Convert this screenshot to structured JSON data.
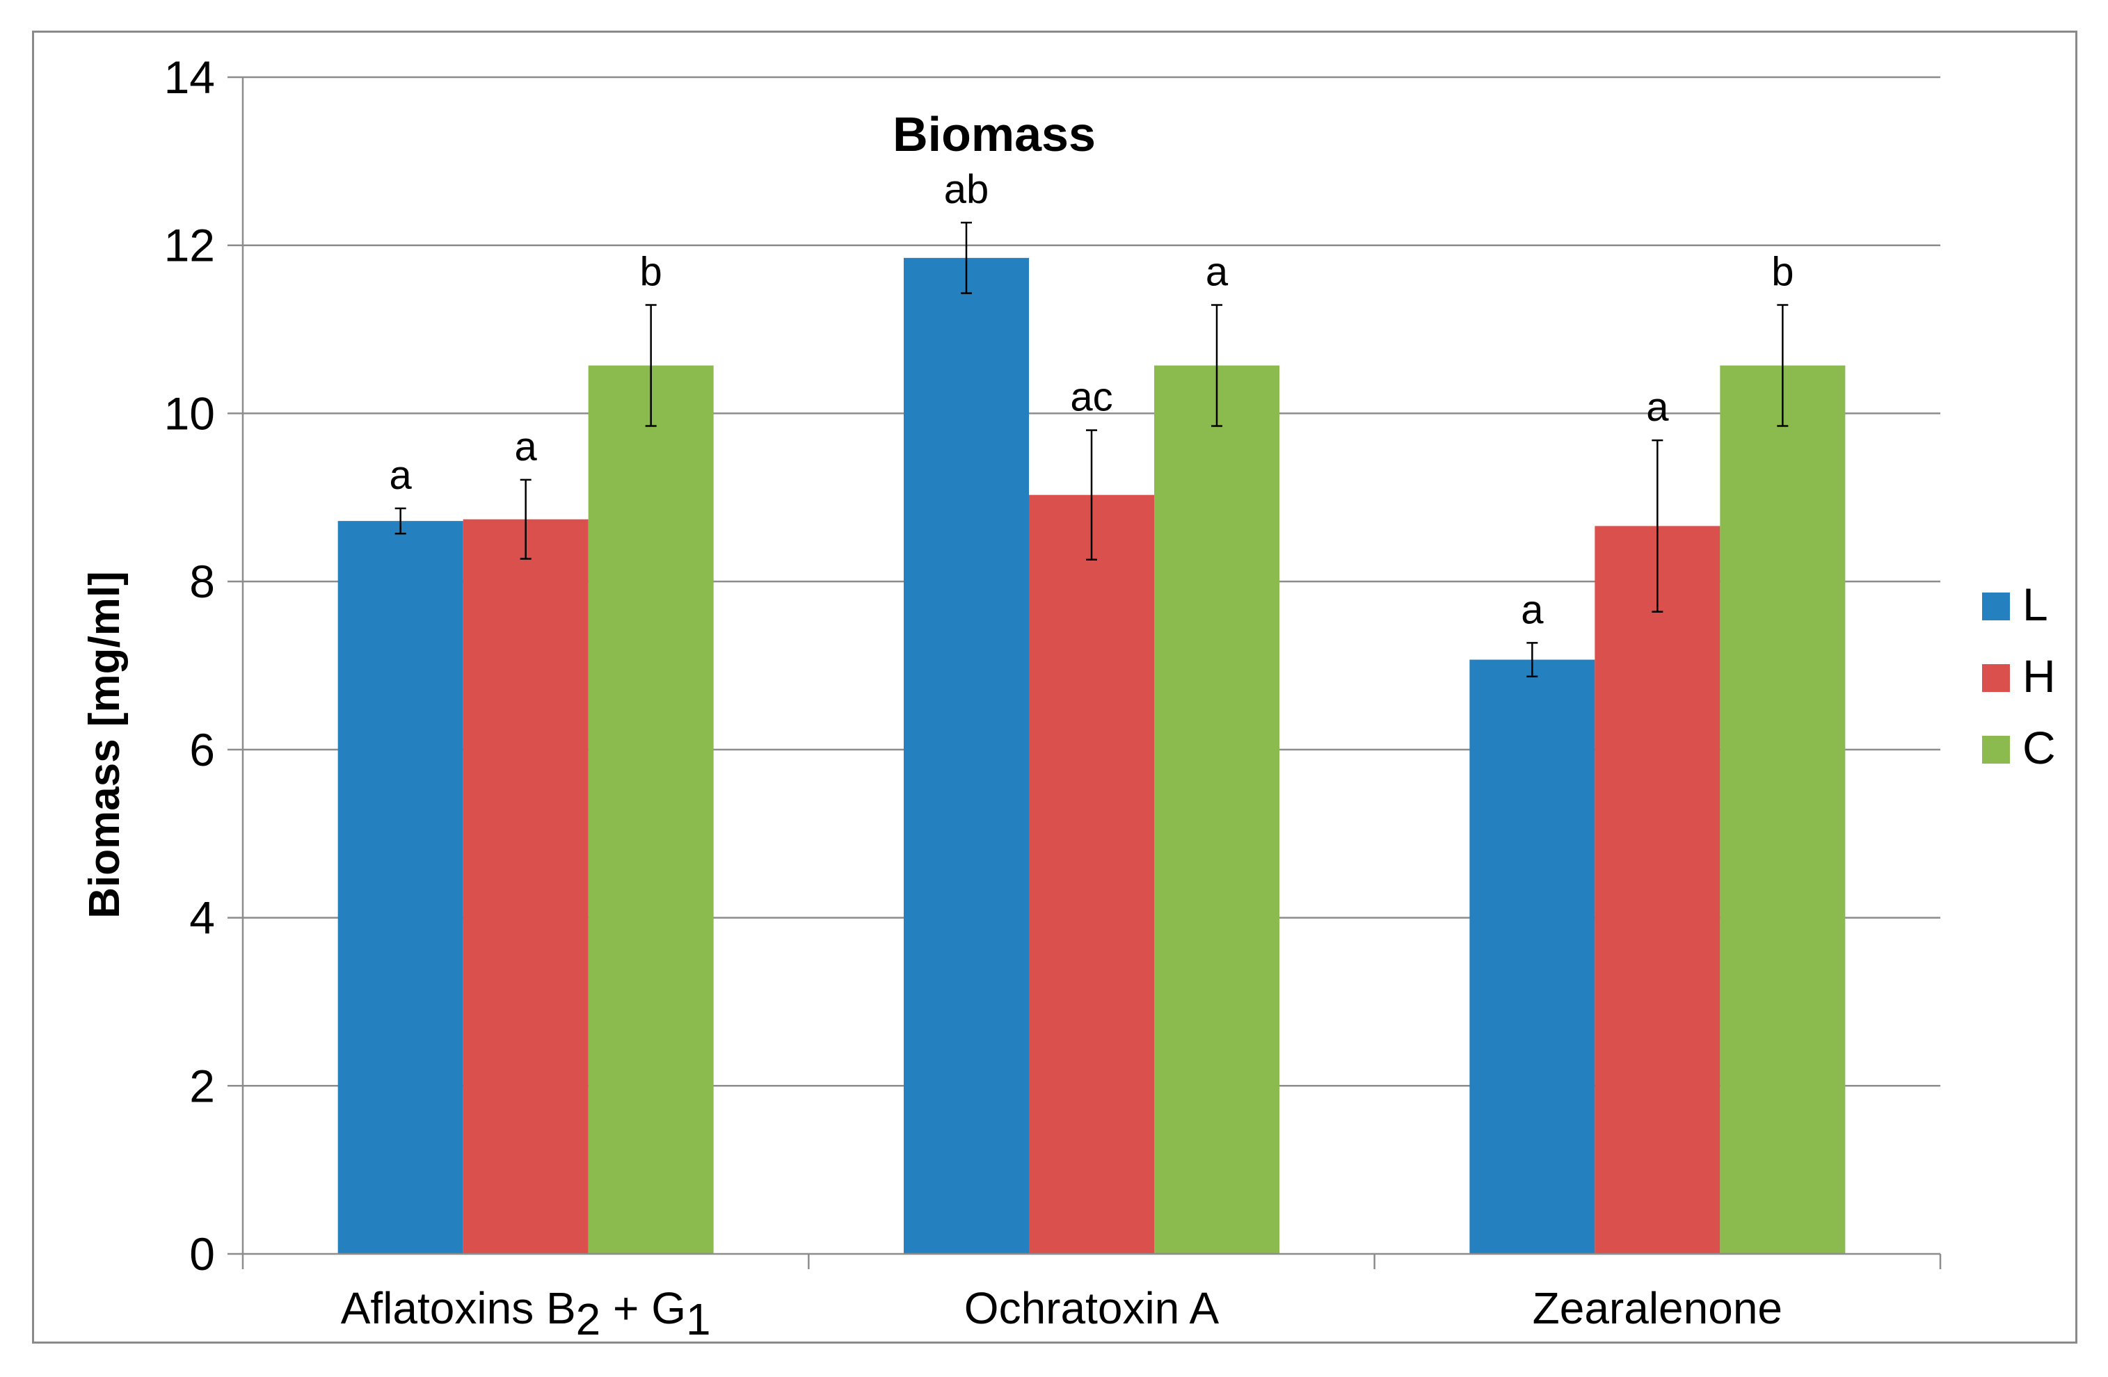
{
  "chart_data": {
    "type": "bar",
    "title": "Biomass",
    "ylabel": "Biomass [mg/ml]",
    "xlabel": "",
    "ylim": [
      0,
      14
    ],
    "yticks": [
      "0",
      "2",
      "4",
      "6",
      "8",
      "10",
      "12",
      "14"
    ],
    "categories": [
      {
        "text": "Aflatoxins B",
        "sub1": "2",
        "mid": " + G",
        "sub2": "1"
      },
      {
        "text": "Ochratoxin A"
      },
      {
        "text": "Zearalenone"
      }
    ],
    "grid": true,
    "legend_position": "right",
    "series": [
      {
        "name": "L",
        "color": "#2580bf",
        "values": [
          8.72,
          11.85,
          7.07
        ],
        "errors": [
          0.15,
          0.42,
          0.2
        ],
        "labels": [
          "a",
          "ab",
          "a"
        ]
      },
      {
        "name": "H",
        "color": "#d9504c",
        "values": [
          8.74,
          9.03,
          8.66
        ],
        "errors": [
          0.47,
          0.77,
          1.02
        ],
        "labels": [
          "a",
          "ac",
          "a"
        ]
      },
      {
        "name": "C",
        "color": "#8bba4f",
        "values": [
          10.57,
          10.57,
          10.57
        ],
        "errors": [
          0.72,
          0.72,
          0.72
        ],
        "labels": [
          "b",
          "a",
          "b"
        ]
      }
    ]
  }
}
